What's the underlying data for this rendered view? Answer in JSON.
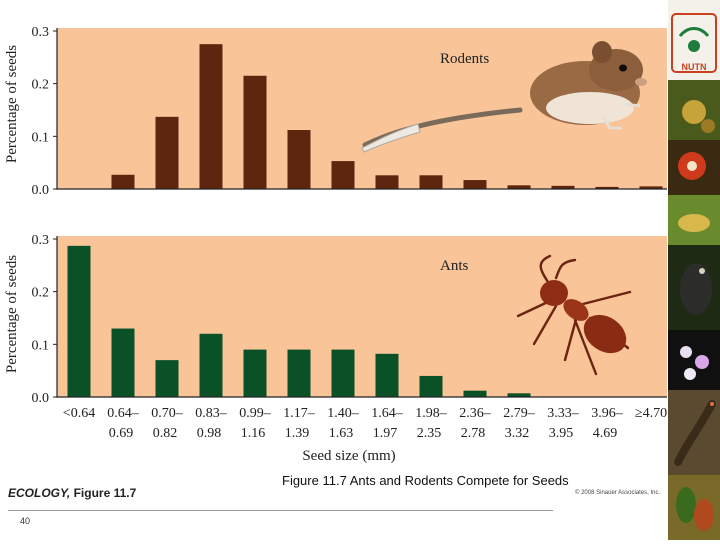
{
  "chart_data": [
    {
      "type": "bar",
      "title": "Rodents",
      "ylabel": "Percentage of seeds",
      "xlabel": "Seed size (mm)",
      "ylim": [
        0,
        0.3
      ],
      "yticks": [
        "0.0",
        "0.1",
        "0.2",
        "0.3"
      ],
      "bar_color": "#5e260e",
      "categories": [
        "<0.64",
        "0.64–0.69",
        "0.70–0.82",
        "0.83–0.98",
        "0.99–1.16",
        "1.17–1.39",
        "1.40–1.63",
        "1.64–1.97",
        "1.98–2.35",
        "2.36–2.78",
        "2.79–3.32",
        "3.33–3.95",
        "3.96–4.69",
        "≥4.70"
      ],
      "values": [
        0,
        0.027,
        0.137,
        0.275,
        0.215,
        0.112,
        0.053,
        0.026,
        0.026,
        0.017,
        0.007,
        0.006,
        0.004,
        0.005
      ]
    },
    {
      "type": "bar",
      "title": "Ants",
      "ylabel": "Percentage of seeds",
      "xlabel": "Seed size (mm)",
      "ylim": [
        0,
        0.3
      ],
      "yticks": [
        "0.0",
        "0.1",
        "0.2",
        "0.3"
      ],
      "bar_color": "#0b5128",
      "categories": [
        "<0.64",
        "0.64–0.69",
        "0.70–0.82",
        "0.83–0.98",
        "0.99–1.16",
        "1.17–1.39",
        "1.40–1.63",
        "1.64–1.97",
        "1.98–2.35",
        "2.36–2.78",
        "2.79–3.32",
        "3.33–3.95",
        "3.96–4.69",
        "≥4.70"
      ],
      "values": [
        0.287,
        0.13,
        0.07,
        0.12,
        0.09,
        0.09,
        0.09,
        0.082,
        0.04,
        0.012,
        0.007,
        0,
        0,
        0
      ]
    }
  ],
  "x_tick_labels": {
    "top": [
      "<0.64",
      "0.64–",
      "0.70–",
      "0.83–",
      "0.99–",
      "1.17–",
      "1.40–",
      "1.64–",
      "1.98–",
      "2.36–",
      "2.79–",
      "3.33–",
      "3.96–",
      "≥4.70"
    ],
    "bottom": [
      "",
      "0.69",
      "0.82",
      "0.98",
      "1.16",
      "1.39",
      "1.63",
      "1.97",
      "2.35",
      "2.78",
      "3.32",
      "3.95",
      "4.69",
      ""
    ]
  },
  "colors": {
    "panel_bg": "#f8c498",
    "axis": "#222222"
  },
  "footer": {
    "caption": "Figure 11.7  Ants and Rodents Compete for Seeds",
    "book_title": "ECOLOGY,",
    "figure_label": " Figure 11.7",
    "copyright": "© 2008 Sinauer Associates, Inc.",
    "page_number": "40"
  },
  "side_strip": {
    "logo_text": "NUTN"
  }
}
